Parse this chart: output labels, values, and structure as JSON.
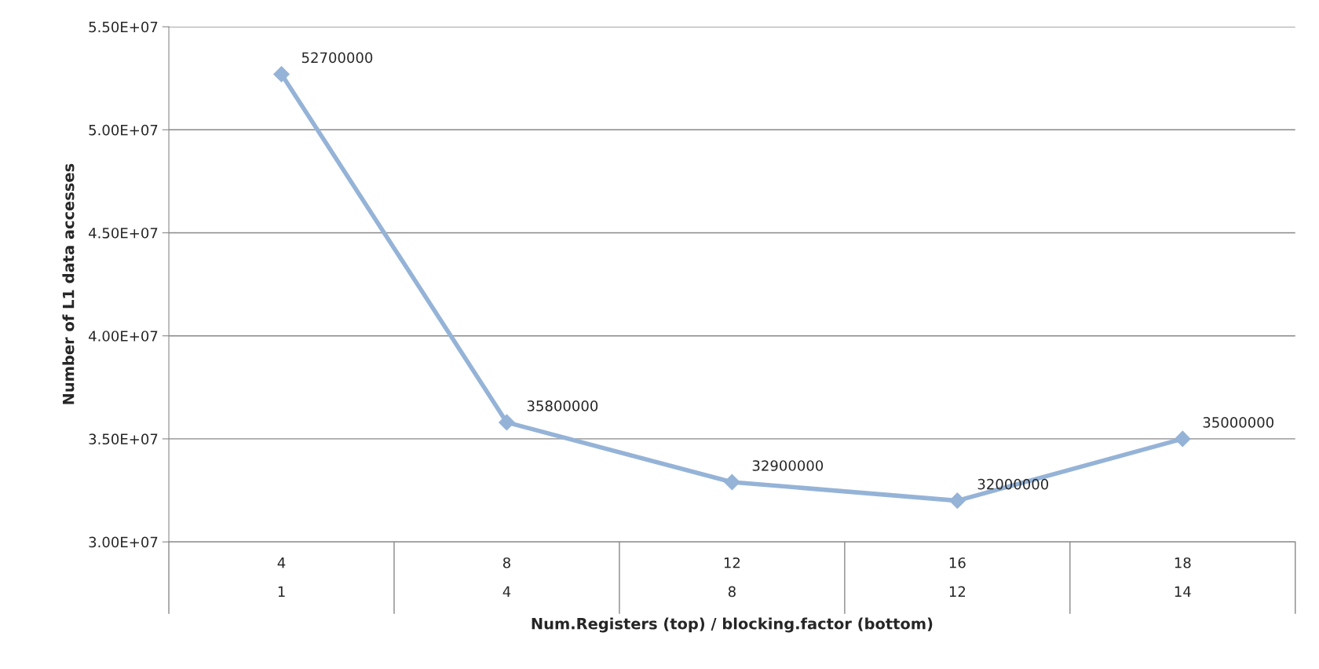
{
  "chart_data": {
    "type": "line",
    "xlabel": "Num.Registers (top) / blocking.factor (bottom)",
    "ylabel": "Number of L1 data accesses",
    "categories": [
      "4\n1",
      "8\n4",
      "12\n8",
      "16\n12",
      "18\n14"
    ],
    "series": [
      {
        "color": "#95b3d7",
        "values": [
          52700000,
          35800000,
          32900000,
          32000000,
          35000000
        ]
      }
    ],
    "ylim": [
      30000000,
      55000000
    ],
    "yticks": [
      {
        "value": 30000000,
        "label": "3.00E+07"
      },
      {
        "value": 35000000,
        "label": "3.50E+07"
      },
      {
        "value": 40000000,
        "label": "4.00E+07"
      },
      {
        "value": 45000000,
        "label": "4.50E+07"
      },
      {
        "value": 50000000,
        "label": "5.00E+07"
      },
      {
        "value": 55000000,
        "label": "5.50E+07"
      }
    ],
    "grid": "y",
    "marker": "diamond",
    "line_style": "solid",
    "data_labels": true
  }
}
